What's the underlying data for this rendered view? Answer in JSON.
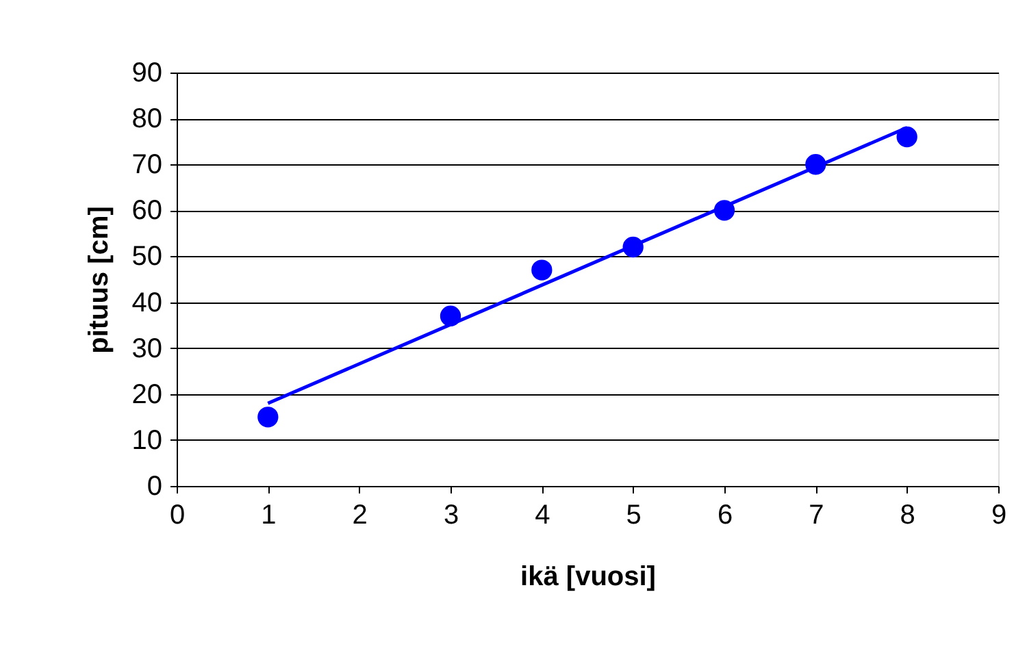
{
  "chart_data": {
    "type": "scatter",
    "xlabel": "ikä [vuosi]",
    "ylabel": "pituus [cm]",
    "x": [
      1,
      3,
      4,
      5,
      6,
      7,
      8
    ],
    "series": [
      {
        "color": "#0000ff",
        "values": [
          15,
          37,
          47,
          52,
          60,
          70,
          76
        ],
        "marker": "circle"
      },
      {
        "type": "line",
        "color": "#0000ff",
        "x": [
          1,
          8
        ],
        "values": [
          18,
          78
        ],
        "line_style": "solid",
        "marker": "none"
      }
    ],
    "xlim": [
      0,
      9
    ],
    "xticks": [
      0,
      1,
      2,
      3,
      4,
      5,
      6,
      7,
      8,
      9
    ],
    "ylim": [
      0,
      90
    ],
    "yticks": [
      0,
      10,
      20,
      30,
      40,
      50,
      60,
      70,
      80,
      90
    ],
    "grid": "y"
  }
}
